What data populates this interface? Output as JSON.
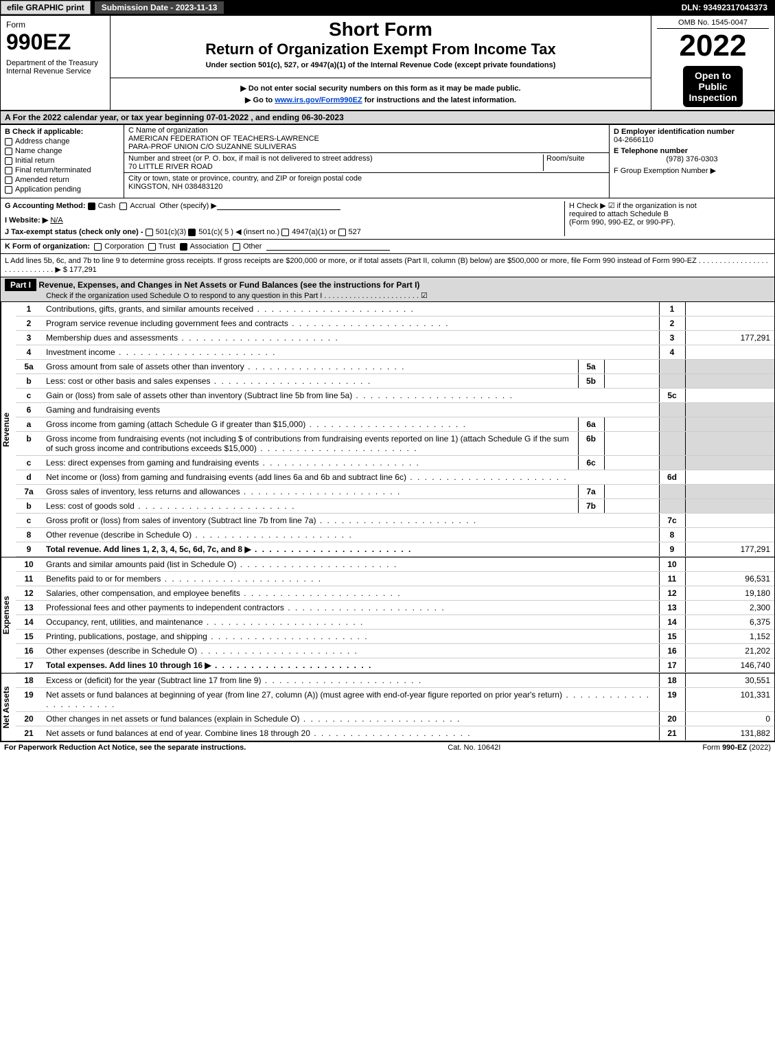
{
  "topbar": {
    "print_label": "efile GRAPHIC print",
    "submission_date_label": "Submission Date - 2023-11-13",
    "dln_label": "DLN: 93492317043373"
  },
  "header": {
    "form_word": "Form",
    "form_number": "990EZ",
    "department": "Department of the Treasury\nInternal Revenue Service",
    "short_form": "Short Form",
    "return_title": "Return of Organization Exempt From Income Tax",
    "under_section": "Under section 501(c), 527, or 4947(a)(1) of the Internal Revenue Code (except private foundations)",
    "no_ssn": "▶ Do not enter social security numbers on this form as it may be made public.",
    "go_to": "▶ Go to www.irs.gov/Form990EZ for instructions and the latest information.",
    "omb": "OMB No. 1545-0047",
    "tax_year": "2022",
    "open_to": "Open to",
    "public": "Public",
    "inspection": "Inspection"
  },
  "section_a": "A  For the 2022 calendar year, or tax year beginning 07-01-2022  , and ending 06-30-2023",
  "section_b": {
    "title": "B  Check if applicable:",
    "items": [
      {
        "label": "Address change",
        "checked": false
      },
      {
        "label": "Name change",
        "checked": false
      },
      {
        "label": "Initial return",
        "checked": false
      },
      {
        "label": "Final return/terminated",
        "checked": false
      },
      {
        "label": "Amended return",
        "checked": false
      },
      {
        "label": "Application pending",
        "checked": false
      }
    ]
  },
  "section_c": {
    "name_label": "C Name of organization",
    "org_name1": "AMERICAN FEDERATION OF TEACHERS-LAWRENCE",
    "org_name2": "PARA-PROF UNION C/O SUZANNE SULIVERAS",
    "street_label": "Number and street (or P. O. box, if mail is not delivered to street address)",
    "room_label": "Room/suite",
    "street": "70 LITTLE RIVER ROAD",
    "city_label": "City or town, state or province, country, and ZIP or foreign postal code",
    "city": "KINGSTON, NH  038483120"
  },
  "section_d": {
    "ein_label": "D Employer identification number",
    "ein": "04-2666110",
    "tel_label": "E Telephone number",
    "tel": "(978) 376-0303",
    "group_label": "F Group Exemption Number  ▶"
  },
  "section_g": {
    "label": "G Accounting Method:",
    "cash": "Cash",
    "accrual": "Accrual",
    "other": "Other (specify) ▶",
    "cash_checked": true
  },
  "section_h": {
    "text1": "H  Check ▶ ☑ if the organization is not",
    "text2": "required to attach Schedule B",
    "text3": "(Form 990, 990-EZ, or 990-PF)."
  },
  "section_i": {
    "label": "I Website: ▶",
    "value": "N/A"
  },
  "section_j": {
    "label": "J Tax-exempt status (check only one) -",
    "opt1": "501(c)(3)",
    "opt2": "501(c)( 5 ) ◀ (insert no.)",
    "opt3": "4947(a)(1) or",
    "opt4": "527",
    "checked_idx": 1
  },
  "section_k": {
    "label": "K Form of organization:",
    "opts": [
      "Corporation",
      "Trust",
      "Association",
      "Other"
    ],
    "checked_idx": 2
  },
  "section_l": {
    "text": "L Add lines 5b, 6c, and 7b to line 9 to determine gross receipts. If gross receipts are $200,000 or more, or if total assets (Part II, column (B) below) are $500,000 or more, file Form 990 instead of Form 990-EZ  .  .  .  .  .  .  .  .  .  .  .  .  .  .  .  .  .  .  .  .  .  .  .  .  .  .  .  .  . ▶ $ 177,291"
  },
  "part1": {
    "label": "Part I",
    "title": "Revenue, Expenses, and Changes in Net Assets or Fund Balances (see the instructions for Part I)",
    "sub": "Check if the organization used Schedule O to respond to any question in this Part I  .  .  .  .  .  .  .  .  .  .  .  .  .  .  .  .  .  .  .  .  .  .  .  ☑"
  },
  "vlabels": {
    "revenue": "Revenue",
    "expenses": "Expenses",
    "netassets": "Net Assets"
  },
  "lines": [
    {
      "n": "1",
      "desc": "Contributions, gifts, grants, and similar amounts received",
      "ref": "1",
      "val": ""
    },
    {
      "n": "2",
      "desc": "Program service revenue including government fees and contracts",
      "ref": "2",
      "val": ""
    },
    {
      "n": "3",
      "desc": "Membership dues and assessments",
      "ref": "3",
      "val": "177,291"
    },
    {
      "n": "4",
      "desc": "Investment income",
      "ref": "4",
      "val": ""
    },
    {
      "n": "5a",
      "desc": "Gross amount from sale of assets other than inventory",
      "midref": "5a"
    },
    {
      "n": "b",
      "desc": "Less: cost or other basis and sales expenses",
      "midref": "5b"
    },
    {
      "n": "c",
      "desc": "Gain or (loss) from sale of assets other than inventory (Subtract line 5b from line 5a)",
      "ref": "5c",
      "val": ""
    },
    {
      "n": "6",
      "desc": "Gaming and fundraising events",
      "noval": true
    },
    {
      "n": "a",
      "desc": "Gross income from gaming (attach Schedule G if greater than $15,000)",
      "midref": "6a"
    },
    {
      "n": "b",
      "desc": "Gross income from fundraising events (not including $                       of contributions from fundraising events reported on line 1) (attach Schedule G if the sum of such gross income and contributions exceeds $15,000)",
      "midref": "6b"
    },
    {
      "n": "c",
      "desc": "Less: direct expenses from gaming and fundraising events",
      "midref": "6c"
    },
    {
      "n": "d",
      "desc": "Net income or (loss) from gaming and fundraising events (add lines 6a and 6b and subtract line 6c)",
      "ref": "6d",
      "val": ""
    },
    {
      "n": "7a",
      "desc": "Gross sales of inventory, less returns and allowances",
      "midref": "7a"
    },
    {
      "n": "b",
      "desc": "Less: cost of goods sold",
      "midref": "7b"
    },
    {
      "n": "c",
      "desc": "Gross profit or (loss) from sales of inventory (Subtract line 7b from line 7a)",
      "ref": "7c",
      "val": ""
    },
    {
      "n": "8",
      "desc": "Other revenue (describe in Schedule O)",
      "ref": "8",
      "val": ""
    },
    {
      "n": "9",
      "desc": "Total revenue. Add lines 1, 2, 3, 4, 5c, 6d, 7c, and 8",
      "ref": "9",
      "val": "177,291",
      "bold": true,
      "arrow": true
    }
  ],
  "expenses_lines": [
    {
      "n": "10",
      "desc": "Grants and similar amounts paid (list in Schedule O)",
      "ref": "10",
      "val": ""
    },
    {
      "n": "11",
      "desc": "Benefits paid to or for members",
      "ref": "11",
      "val": "96,531"
    },
    {
      "n": "12",
      "desc": "Salaries, other compensation, and employee benefits",
      "ref": "12",
      "val": "19,180"
    },
    {
      "n": "13",
      "desc": "Professional fees and other payments to independent contractors",
      "ref": "13",
      "val": "2,300"
    },
    {
      "n": "14",
      "desc": "Occupancy, rent, utilities, and maintenance",
      "ref": "14",
      "val": "6,375"
    },
    {
      "n": "15",
      "desc": "Printing, publications, postage, and shipping",
      "ref": "15",
      "val": "1,152"
    },
    {
      "n": "16",
      "desc": "Other expenses (describe in Schedule O)",
      "ref": "16",
      "val": "21,202"
    },
    {
      "n": "17",
      "desc": "Total expenses. Add lines 10 through 16",
      "ref": "17",
      "val": "146,740",
      "bold": true,
      "arrow": true
    }
  ],
  "netassets_lines": [
    {
      "n": "18",
      "desc": "Excess or (deficit) for the year (Subtract line 17 from line 9)",
      "ref": "18",
      "val": "30,551"
    },
    {
      "n": "19",
      "desc": "Net assets or fund balances at beginning of year (from line 27, column (A)) (must agree with end-of-year figure reported on prior year's return)",
      "ref": "19",
      "val": "101,331"
    },
    {
      "n": "20",
      "desc": "Other changes in net assets or fund balances (explain in Schedule O)",
      "ref": "20",
      "val": "0"
    },
    {
      "n": "21",
      "desc": "Net assets or fund balances at end of year. Combine lines 18 through 20",
      "ref": "21",
      "val": "131,882"
    }
  ],
  "footer": {
    "left": "For Paperwork Reduction Act Notice, see the separate instructions.",
    "mid": "Cat. No. 10642I",
    "right": "Form 990-EZ (2022)"
  },
  "colors": {
    "black": "#000000",
    "white": "#ffffff",
    "grey": "#d9d9d9",
    "link": "#0044cc"
  }
}
